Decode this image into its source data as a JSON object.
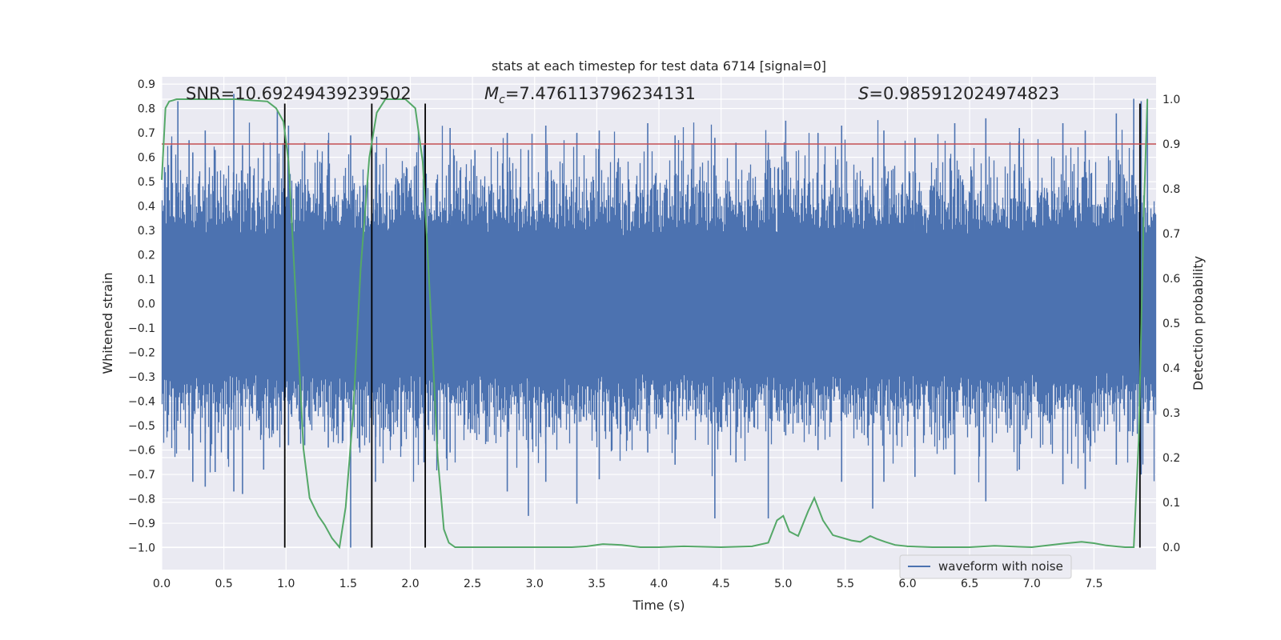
{
  "chart_data": {
    "type": "line",
    "title": "stats at each timestep for test data 6714 [signal=0]",
    "xlabel": "Time (s)",
    "ylabel": "Whitened strain",
    "y2label": "Detection probability",
    "xlim": [
      0.0,
      8.0
    ],
    "ylim": [
      -1.09,
      0.93
    ],
    "y2lim": [
      -0.05,
      1.05
    ],
    "xticks": [
      "0.0",
      "0.5",
      "1.0",
      "1.5",
      "2.0",
      "2.5",
      "3.0",
      "3.5",
      "4.0",
      "4.5",
      "5.0",
      "5.5",
      "6.0",
      "6.5",
      "7.0",
      "7.5"
    ],
    "yticks": [
      "0.9",
      "0.8",
      "0.7",
      "0.6",
      "0.5",
      "0.4",
      "0.3",
      "0.2",
      "0.1",
      "0.0",
      "−0.1",
      "−0.2",
      "−0.3",
      "−0.4",
      "−0.5",
      "−0.6",
      "−0.7",
      "−0.8",
      "−0.9",
      "−1.0"
    ],
    "y2ticks": [
      "1.0",
      "0.9",
      "0.8",
      "0.7",
      "0.6",
      "0.5",
      "0.4",
      "0.3",
      "0.2",
      "0.1",
      "0.0"
    ],
    "grid": true,
    "legend": {
      "entries": [
        "waveform with noise"
      ],
      "placement": "lower-right"
    },
    "annotations": {
      "snr": "SNR=10.69249439239502",
      "mc_symbol": "M",
      "mc_sub": "c",
      "mc_value": "=7.476113796234131",
      "s_symbol": "S",
      "s_value": "=0.985912024974823"
    },
    "threshold": {
      "value": 0.9,
      "axis": "right",
      "color": "#c44e52"
    },
    "vlines": [
      0.99,
      1.69,
      2.12,
      7.87
    ],
    "vline_range": [
      -1.0,
      0.82
    ],
    "waveform": {
      "name": "waveform with noise",
      "color": "#4c72b0",
      "samples": 8000,
      "envelope": 0.28,
      "spikes": [
        [
          0.13,
          0.83,
          -0.48
        ],
        [
          0.22,
          0.67,
          -0.6
        ],
        [
          0.25,
          0.62,
          -0.73
        ],
        [
          0.35,
          0.71,
          -0.75
        ],
        [
          0.43,
          0.63,
          -0.69
        ],
        [
          0.58,
          0.86,
          -0.77
        ],
        [
          0.65,
          0.65,
          -0.78
        ],
        [
          0.82,
          0.66,
          -0.68
        ],
        [
          0.93,
          0.79,
          -0.52
        ],
        [
          1.02,
          0.73,
          -0.58
        ],
        [
          1.15,
          0.66,
          -0.58
        ],
        [
          1.34,
          0.67,
          -0.59
        ],
        [
          1.52,
          0.69,
          -1.0
        ],
        [
          1.72,
          0.62,
          -0.73
        ],
        [
          2.11,
          0.65,
          -0.65
        ],
        [
          2.32,
          0.72,
          -0.61
        ],
        [
          2.52,
          0.63,
          -0.53
        ],
        [
          2.78,
          0.7,
          -0.77
        ],
        [
          2.95,
          0.63,
          -0.87
        ],
        [
          3.09,
          0.73,
          -0.73
        ],
        [
          3.34,
          0.7,
          -0.82
        ],
        [
          3.52,
          0.71,
          -0.72
        ],
        [
          3.91,
          0.74,
          -0.61
        ],
        [
          4.13,
          0.69,
          -0.66
        ],
        [
          4.45,
          0.68,
          -0.88
        ],
        [
          4.62,
          0.66,
          -0.65
        ],
        [
          4.88,
          0.66,
          -0.88
        ],
        [
          5.02,
          0.75,
          -0.54
        ],
        [
          5.28,
          0.7,
          -0.6
        ],
        [
          5.47,
          0.73,
          -0.73
        ],
        [
          5.72,
          0.6,
          -0.84
        ],
        [
          5.81,
          0.71,
          -0.73
        ],
        [
          6.06,
          0.68,
          -0.71
        ],
        [
          6.38,
          0.74,
          -0.7
        ],
        [
          6.63,
          0.76,
          -0.81
        ],
        [
          6.9,
          0.72,
          -0.68
        ],
        [
          7.25,
          0.74,
          -0.74
        ],
        [
          7.43,
          0.71,
          -0.76
        ],
        [
          7.68,
          0.78,
          -0.66
        ],
        [
          7.82,
          0.84,
          -0.48
        ],
        [
          7.88,
          0.83,
          -0.7
        ],
        [
          7.93,
          0.84,
          -0.49
        ]
      ]
    },
    "probability": {
      "name": "detection probability",
      "color": "#55a868",
      "x": [
        0.0,
        0.03,
        0.06,
        0.12,
        0.2,
        0.4,
        0.6,
        0.85,
        0.92,
        0.98,
        1.02,
        1.08,
        1.14,
        1.19,
        1.26,
        1.31,
        1.37,
        1.43,
        1.48,
        1.54,
        1.6,
        1.67,
        1.73,
        1.8,
        1.86,
        1.96,
        2.04,
        2.1,
        2.16,
        2.22,
        2.27,
        2.31,
        2.36,
        2.42,
        2.55,
        2.8,
        3.0,
        3.2,
        3.3,
        3.42,
        3.55,
        3.7,
        3.85,
        4.0,
        4.2,
        4.5,
        4.75,
        4.88,
        4.95,
        5.0,
        5.05,
        5.12,
        5.2,
        5.25,
        5.32,
        5.4,
        5.55,
        5.62,
        5.7,
        5.75,
        5.82,
        5.9,
        6.0,
        6.2,
        6.5,
        6.7,
        7.0,
        7.25,
        7.4,
        7.5,
        7.6,
        7.75,
        7.82,
        7.86,
        7.9,
        7.93
      ],
      "y": [
        0.82,
        0.98,
        0.995,
        1.0,
        1.0,
        1.0,
        1.0,
        0.995,
        0.98,
        0.95,
        0.86,
        0.55,
        0.22,
        0.11,
        0.07,
        0.05,
        0.02,
        0.0,
        0.09,
        0.3,
        0.62,
        0.87,
        0.97,
        1.0,
        1.0,
        1.0,
        0.98,
        0.86,
        0.55,
        0.2,
        0.04,
        0.01,
        0.0,
        0.0,
        0.0,
        0.0,
        0.0,
        0.0,
        0.0,
        0.002,
        0.007,
        0.005,
        0.0,
        0.0,
        0.002,
        0.0,
        0.002,
        0.01,
        0.06,
        0.07,
        0.035,
        0.025,
        0.08,
        0.11,
        0.06,
        0.027,
        0.015,
        0.012,
        0.025,
        0.019,
        0.012,
        0.005,
        0.002,
        0.0,
        0.0,
        0.003,
        0.0,
        0.008,
        0.012,
        0.009,
        0.004,
        0.0,
        0.0,
        0.24,
        0.74,
        1.0
      ]
    }
  }
}
